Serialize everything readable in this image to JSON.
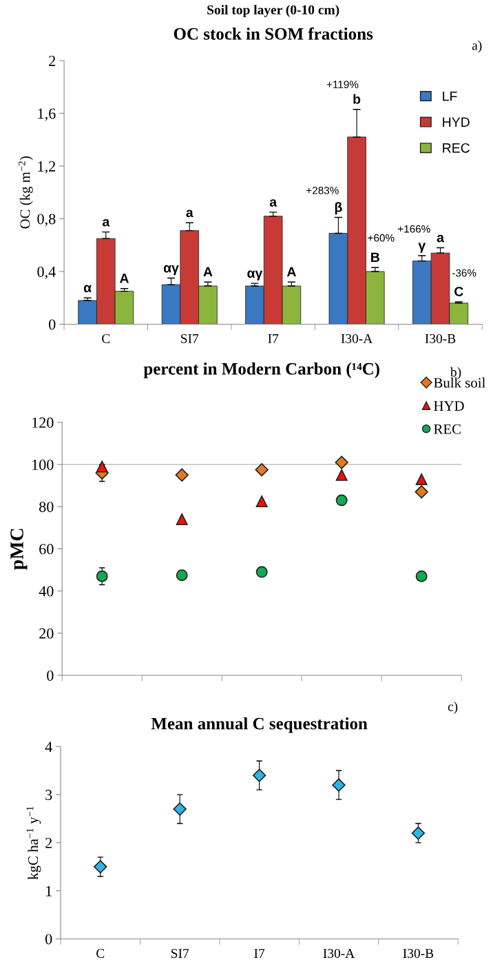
{
  "chart_data": [
    {
      "type": "bar",
      "subtitle": "Soil top layer (0-10 cm)",
      "title": "OC stock in SOM fractions",
      "ylabel": "OC (kg m$^{−2}$)",
      "categories": [
        "C",
        "SI7",
        "I7",
        "I30-A",
        "I30-B"
      ],
      "series": [
        {
          "name": "LF",
          "color": "#3a78c2",
          "values": [
            0.18,
            0.3,
            0.29,
            0.69,
            0.48
          ],
          "errors": [
            0.02,
            0.05,
            0.02,
            0.12,
            0.04
          ],
          "value_labels": [
            "α",
            "αγ",
            "αγ",
            "β",
            "γ"
          ]
        },
        {
          "name": "HYD",
          "color": "#c83a36",
          "values": [
            0.65,
            0.71,
            0.82,
            1.42,
            0.54
          ],
          "errors": [
            0.05,
            0.06,
            0.03,
            0.21,
            0.04
          ],
          "value_labels": [
            "a",
            "a",
            "a",
            "b",
            "a"
          ]
        },
        {
          "name": "REC",
          "color": "#8cb53e",
          "values": [
            0.25,
            0.29,
            0.29,
            0.4,
            0.16
          ],
          "errors": [
            0.02,
            0.03,
            0.03,
            0.03,
            0.01
          ],
          "value_labels": [
            "A",
            "A",
            "A",
            "B",
            "C"
          ]
        }
      ],
      "ylim": [
        0,
        2
      ],
      "yticks": [
        0,
        {
          "value": 0.4,
          "label": "0,4"
        },
        {
          "value": 0.8,
          "label": "0,8"
        },
        {
          "value": 1.2,
          "label": "1,2"
        },
        {
          "value": 1.6,
          "label": "1,6"
        },
        2
      ],
      "legend": "top right",
      "annotations": [
        "a)",
        "+283%",
        "+119%",
        "+60%",
        "+166%",
        "-36%"
      ]
    },
    {
      "type": "scatter",
      "title": "percent in Modern Carbon (¹⁴C)",
      "ylabel": "pMC",
      "categories": [
        null,
        null,
        null,
        null,
        null
      ],
      "series": [
        {
          "name": "Bulk soil",
          "color": "#e07b22",
          "marker": "diamond",
          "values": [
            96,
            95,
            97.5,
            101,
            87
          ],
          "errors": [
            4,
            null,
            null,
            null,
            null
          ]
        },
        {
          "name": "HYD",
          "color": "#f01010",
          "marker": "triangle",
          "values": [
            99,
            74,
            82.5,
            95,
            93
          ]
        },
        {
          "name": "REC",
          "color": "#12a854",
          "marker": "circle",
          "values": [
            47,
            47.5,
            49,
            83,
            47
          ],
          "errors": [
            4,
            null,
            null,
            2,
            null
          ]
        }
      ],
      "ylim": [
        0,
        120
      ],
      "yticks": [
        0,
        20,
        40,
        60,
        80,
        100,
        120
      ],
      "ref_lines": [
        {
          "axis": "y",
          "value": 100,
          "label": null,
          "color": "#bfbfbf"
        }
      ],
      "legend": "top right",
      "tick_labels": "y",
      "annotations": [
        "b)"
      ]
    },
    {
      "type": "scatter",
      "title": "Mean annual C sequestration",
      "ylabel": "kgC ha$^{−1}$ y$^{−1}$",
      "categories": [
        "C",
        "SI7",
        "I7",
        "I30-A",
        "I30-B"
      ],
      "series": [
        {
          "color": "#2bb5e6",
          "marker": "diamond",
          "values": [
            1.5,
            2.7,
            3.4,
            3.2,
            2.2
          ],
          "errors": [
            0.2,
            0.3,
            0.3,
            0.3,
            0.2
          ]
        }
      ],
      "ylim": [
        0,
        4
      ],
      "yticks": [
        0,
        1,
        2,
        3,
        4
      ],
      "annotations": [
        "c)"
      ]
    }
  ]
}
